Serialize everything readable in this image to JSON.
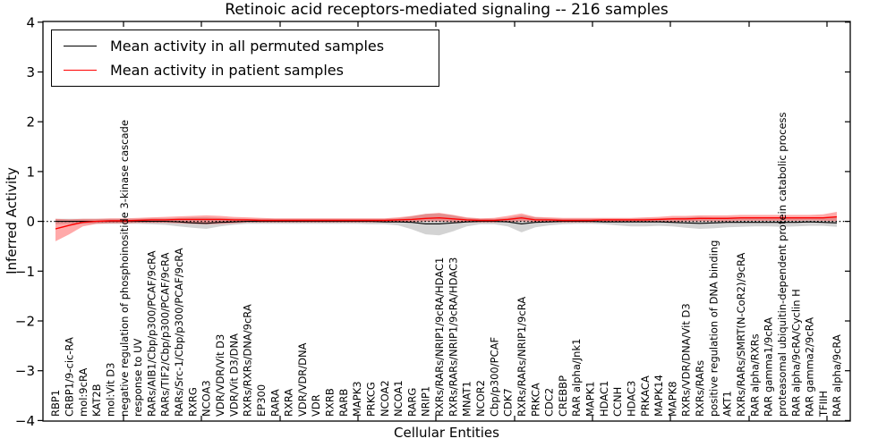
{
  "chart_data": {
    "type": "line",
    "title": "Retinoic acid receptors-mediated signaling -- 216 samples",
    "xlabel": "Cellular Entities",
    "ylabel": "Inferred Activity",
    "ylim": [
      -4,
      4
    ],
    "yticks": [
      4,
      3,
      2,
      1,
      0,
      -1,
      -2,
      -3,
      -4
    ],
    "grid": false,
    "legend_position": "upper left",
    "zero_reference_line": 0,
    "categories": [
      "RBP1",
      "CRBP1/9-cic-RA",
      "mol:9cRA",
      "KAT2B",
      "mol:Vit D3",
      "negative regulation of phosphoinositide 3-kinase cascade",
      "response to UV",
      "RARs/AIB1/Cbp/p300/PCAF/9cRA",
      "RARs/TIF2/Cbp/p300/PCAF/9cRA",
      "RARs/Src-1/Cbp/p300/PCAF/9cRA",
      "RXRG",
      "NCOA3",
      "VDR/VDR/Vit D3",
      "VDR/Vit D3/DNA",
      "RXRs/RXRs/DNA/9cRA",
      "EP300",
      "RARA",
      "RXRA",
      "VDR/VDR/DNA",
      "VDR",
      "RXRB",
      "RARB",
      "MAPK3",
      "PRKCG",
      "NCOA2",
      "NCOA1",
      "RARG",
      "NRIP1",
      "RXRs/RARs/NRIP1/9cRA/HDAC1",
      "RXRs/RARs/NRIP1/9cRA/HDAC3",
      "MNAT1",
      "NCOR2",
      "Cbp/p300/PCAF",
      "CDK7",
      "RXRs/RARs/NRIP1/9cRA",
      "PRKCA",
      "CDC2",
      "CREBBP",
      "RAR alpha/Jnk1",
      "MAPK1",
      "HDAC1",
      "CCNH",
      "HDAC3",
      "PRKACA",
      "MAPK14",
      "MAPK8",
      "RXRs/VDR/DNA/Vit D3",
      "RXRs/RARs",
      "positive regulation of DNA binding",
      "AKT1",
      "RXRs/RARs/SMRT(N-CoR2)/9cRA",
      "RAR alpha/RXRs",
      "RAR gamma1/9cRA",
      "proteasomal ubiquitin-dependent protein catabolic process",
      "RAR alpha/9cRA/Cyclin H",
      "RAR gamma2/9cRA",
      "TFIIH",
      "RAR alpha/9cRA"
    ],
    "series": [
      {
        "name": "Mean activity in all permuted samples",
        "color": "#000000",
        "band_color": "rgba(128,128,128,0.35)",
        "values": [
          0,
          0,
          0,
          0,
          0,
          0,
          0,
          0,
          0,
          -0.01,
          -0.03,
          -0.04,
          -0.02,
          -0.01,
          0,
          0,
          0,
          0,
          0,
          0,
          0,
          0,
          0,
          0,
          -0.01,
          -0.01,
          -0.02,
          -0.05,
          -0.05,
          -0.03,
          -0.01,
          0,
          0,
          -0.01,
          -0.05,
          -0.02,
          -0.01,
          0,
          0,
          0,
          -0.01,
          -0.01,
          -0.01,
          -0.01,
          -0.01,
          -0.02,
          -0.03,
          -0.04,
          -0.03,
          -0.02,
          -0.02,
          -0.02,
          -0.02,
          -0.02,
          -0.02,
          -0.01,
          -0.02,
          -0.03
        ],
        "band_upper": [
          0.05,
          0.05,
          0.05,
          0.05,
          0.05,
          0.05,
          0.05,
          0.06,
          0.06,
          0.07,
          0.08,
          0.08,
          0.07,
          0.06,
          0.05,
          0.05,
          0.05,
          0.05,
          0.05,
          0.05,
          0.05,
          0.05,
          0.05,
          0.05,
          0.05,
          0.06,
          0.1,
          0.15,
          0.16,
          0.12,
          0.07,
          0.05,
          0.05,
          0.07,
          0.12,
          0.08,
          0.06,
          0.05,
          0.05,
          0.05,
          0.05,
          0.05,
          0.05,
          0.06,
          0.06,
          0.07,
          0.08,
          0.09,
          0.08,
          0.08,
          0.08,
          0.08,
          0.08,
          0.08,
          0.08,
          0.07,
          0.07,
          0.08
        ],
        "band_lower": [
          -0.06,
          -0.05,
          -0.05,
          -0.05,
          -0.05,
          -0.05,
          -0.05,
          -0.06,
          -0.07,
          -0.1,
          -0.13,
          -0.15,
          -0.1,
          -0.07,
          -0.05,
          -0.05,
          -0.05,
          -0.05,
          -0.05,
          -0.05,
          -0.05,
          -0.05,
          -0.05,
          -0.06,
          -0.06,
          -0.08,
          -0.16,
          -0.26,
          -0.28,
          -0.2,
          -0.1,
          -0.06,
          -0.06,
          -0.1,
          -0.22,
          -0.12,
          -0.08,
          -0.06,
          -0.05,
          -0.05,
          -0.06,
          -0.08,
          -0.1,
          -0.1,
          -0.09,
          -0.1,
          -0.13,
          -0.15,
          -0.14,
          -0.12,
          -0.11,
          -0.1,
          -0.1,
          -0.11,
          -0.1,
          -0.09,
          -0.09,
          -0.11
        ]
      },
      {
        "name": "Mean activity in patient samples",
        "color": "#ff0000",
        "band_color": "rgba(255,30,30,0.38)",
        "values": [
          -0.15,
          -0.08,
          -0.02,
          0,
          0.01,
          0.01,
          0.02,
          0.03,
          0.03,
          0.04,
          0.04,
          0.04,
          0.04,
          0.03,
          0.03,
          0.02,
          0.02,
          0.02,
          0.02,
          0.02,
          0.02,
          0.02,
          0.02,
          0.02,
          0.02,
          0.03,
          0.04,
          0.06,
          0.07,
          0.05,
          0.03,
          0.02,
          0.02,
          0.04,
          0.07,
          0.03,
          0.03,
          0.02,
          0.02,
          0.02,
          0.03,
          0.03,
          0.03,
          0.03,
          0.04,
          0.05,
          0.05,
          0.06,
          0.06,
          0.06,
          0.07,
          0.07,
          0.07,
          0.07,
          0.07,
          0.07,
          0.07,
          0.09
        ],
        "band_upper": [
          0.05,
          0.04,
          0.05,
          0.05,
          0.06,
          0.06,
          0.07,
          0.08,
          0.09,
          0.1,
          0.11,
          0.12,
          0.11,
          0.09,
          0.08,
          0.07,
          0.06,
          0.06,
          0.06,
          0.06,
          0.06,
          0.06,
          0.06,
          0.06,
          0.06,
          0.08,
          0.11,
          0.15,
          0.17,
          0.13,
          0.08,
          0.06,
          0.07,
          0.11,
          0.16,
          0.09,
          0.08,
          0.07,
          0.07,
          0.07,
          0.07,
          0.07,
          0.07,
          0.08,
          0.09,
          0.11,
          0.11,
          0.12,
          0.12,
          0.12,
          0.13,
          0.13,
          0.13,
          0.13,
          0.13,
          0.13,
          0.14,
          0.19
        ],
        "band_lower": [
          -0.4,
          -0.26,
          -0.1,
          -0.05,
          -0.04,
          -0.04,
          -0.03,
          -0.03,
          -0.03,
          -0.04,
          -0.05,
          -0.06,
          -0.05,
          -0.04,
          -0.02,
          -0.02,
          -0.02,
          -0.02,
          -0.02,
          -0.02,
          -0.02,
          -0.02,
          -0.02,
          -0.02,
          -0.02,
          -0.02,
          -0.01,
          0,
          0,
          -0.01,
          -0.02,
          -0.02,
          -0.02,
          -0.01,
          0,
          -0.01,
          -0.02,
          -0.02,
          -0.02,
          -0.02,
          -0.01,
          -0.01,
          -0.01,
          -0.01,
          -0.01,
          -0.01,
          0,
          0,
          0,
          0,
          0.01,
          0.01,
          0.01,
          0.01,
          0.01,
          0.02,
          0.01,
          0
        ]
      }
    ]
  }
}
